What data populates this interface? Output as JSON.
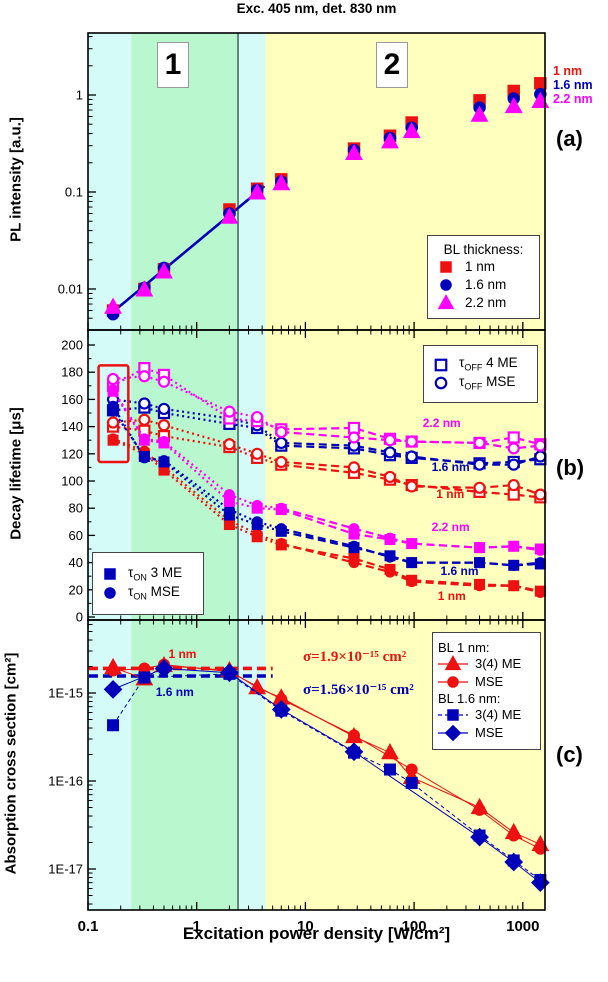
{
  "title": "Exc. 405 nm, det. 830 nm",
  "x_axis": {
    "label": "Excitation power density [W/cm²]",
    "scale": "log",
    "min": 0.1,
    "max": 1600,
    "tick_values": [
      0.1,
      1,
      10,
      100,
      1000
    ],
    "tick_labels": [
      "0.1",
      "1",
      "10",
      "100",
      "1000"
    ]
  },
  "bands": [
    {
      "from": 0.1,
      "to": 0.25,
      "color": "#d5fbf8"
    },
    {
      "from": 0.25,
      "to": 2.4,
      "color": "#b9f7ce"
    },
    {
      "from": 2.4,
      "to": 4.3,
      "color": "#d5fbf8"
    },
    {
      "from": 4.3,
      "to": 1600,
      "color": "#ffffbe"
    }
  ],
  "divider_x": 2.4,
  "region_labels": [
    "1",
    "2"
  ],
  "panel_letters": [
    "(a)",
    "(b)",
    "(c)"
  ],
  "colors": {
    "red": "#ee1111",
    "blue": "#0000bb",
    "magenta": "#ff00ff"
  },
  "chart_data": [
    {
      "panel": "a",
      "type": "scatter",
      "y_label": "PL intensity [a.u.]",
      "y_scale": "log",
      "y_range": [
        0.004,
        4.3
      ],
      "y_ticks": {
        "values": [
          1,
          0.1,
          0.01
        ],
        "labels": [
          "1",
          "0.1",
          "0.01"
        ]
      },
      "x": [
        0.17,
        0.33,
        0.5,
        2,
        3.6,
        6,
        28,
        60,
        95,
        400,
        825,
        1450
      ],
      "series": [
        {
          "name": "1 nm",
          "color": "red",
          "marker": "square",
          "filled": true,
          "values": [
            0.006,
            0.01,
            0.016,
            0.066,
            0.108,
            0.135,
            0.28,
            0.38,
            0.52,
            0.88,
            1.1,
            1.32
          ]
        },
        {
          "name": "1.6 nm",
          "color": "blue",
          "marker": "circle",
          "filled": true,
          "values": [
            0.0055,
            0.0103,
            0.0165,
            0.06,
            0.105,
            0.128,
            0.27,
            0.36,
            0.46,
            0.74,
            0.92,
            1.02
          ]
        },
        {
          "name": "2.2 nm",
          "color": "magenta",
          "marker": "triangle",
          "filled": true,
          "values": [
            0.0065,
            0.0098,
            0.015,
            0.055,
            0.098,
            0.122,
            0.25,
            0.33,
            0.42,
            0.62,
            0.76,
            0.86
          ]
        }
      ],
      "fit_line": {
        "color": "blue",
        "from": [
          0.16,
          0.0055
        ],
        "to": [
          4.2,
          0.115
        ]
      },
      "legend": {
        "title": "BL thickness:",
        "items": [
          {
            "marker": "square",
            "color": "red",
            "filled": true,
            "label": "1 nm"
          },
          {
            "marker": "circle",
            "color": "blue",
            "filled": true,
            "label": "1.6 nm"
          },
          {
            "marker": "triangle",
            "color": "magenta",
            "filled": true,
            "label": "2.2 nm"
          }
        ]
      },
      "side_labels": [
        {
          "text": "1 nm",
          "color": "red"
        },
        {
          "text": "1.6 nm",
          "color": "blue"
        },
        {
          "text": "2.2 nm",
          "color": "magenta"
        }
      ]
    },
    {
      "panel": "b",
      "type": "scatter",
      "y_label": "Decay lifetime [μs]",
      "y_scale": "linear",
      "y_range": [
        0,
        211
      ],
      "y_ticks": {
        "step": 20,
        "max": 200
      },
      "x": [
        0.17,
        0.33,
        0.5,
        2,
        3.6,
        6,
        28,
        60,
        95,
        400,
        825,
        1450
      ],
      "series": [
        {
          "name": "τOFF 4 ME 1 nm",
          "color": "red",
          "marker": "square",
          "filled": false,
          "values": [
            140,
            137,
            133,
            125,
            117,
            112,
            106,
            101,
            97,
            92,
            90,
            88
          ]
        },
        {
          "name": "τOFF MSE 1 nm",
          "color": "red",
          "marker": "circle",
          "filled": false,
          "values": [
            143,
            145,
            141,
            127,
            120,
            114,
            110,
            103,
            96,
            95,
            97,
            90
          ]
        },
        {
          "name": "τOFF 4 ME 1.6 nm",
          "color": "blue",
          "marker": "square",
          "filled": false,
          "values": [
            152,
            154,
            150,
            142,
            139,
            126,
            124,
            119,
            117,
            113,
            114,
            116
          ]
        },
        {
          "name": "τOFF MSE 1.6 nm",
          "color": "blue",
          "marker": "circle",
          "filled": false,
          "values": [
            160,
            157,
            153,
            146,
            141,
            128,
            126,
            121,
            118,
            112,
            112,
            118
          ]
        },
        {
          "name": "τOFF 4 ME 2.2 nm",
          "color": "magenta",
          "marker": "square",
          "filled": false,
          "values": [
            170,
            183,
            178,
            146,
            144,
            138,
            139,
            131,
            129,
            128,
            132,
            127
          ]
        },
        {
          "name": "τOFF MSE 2.2 nm",
          "color": "magenta",
          "marker": "circle",
          "filled": false,
          "values": [
            175,
            177,
            173,
            151,
            147,
            136,
            132,
            130,
            129,
            128,
            124,
            126
          ]
        },
        {
          "name": "τON 3 ME 1 nm",
          "color": "red",
          "marker": "square",
          "filled": true,
          "values": [
            130,
            120,
            108,
            68,
            59,
            53,
            43,
            35,
            27,
            24,
            23,
            19
          ]
        },
        {
          "name": "τON MSE 1 nm",
          "color": "red",
          "marker": "circle",
          "filled": true,
          "values": [
            131,
            122,
            110,
            71,
            61,
            54,
            40,
            33,
            26,
            23,
            23,
            18
          ]
        },
        {
          "name": "τON 3 ME 1.6 nm",
          "color": "blue",
          "marker": "square",
          "filled": true,
          "values": [
            152,
            118,
            114,
            75,
            68,
            63,
            51,
            45,
            40,
            40,
            38,
            39
          ]
        },
        {
          "name": "τON MSE 1.6 nm",
          "color": "blue",
          "marker": "circle",
          "filled": true,
          "values": [
            155,
            117,
            115,
            79,
            70,
            65,
            52,
            44,
            40,
            40,
            38,
            40
          ]
        },
        {
          "name": "τON 3 ME 2.2 nm",
          "color": "magenta",
          "marker": "square",
          "filled": true,
          "values": [
            166,
            130,
            128,
            85,
            80,
            79,
            61,
            57,
            54,
            51,
            52,
            50
          ]
        },
        {
          "name": "τON MSE 2.2 nm",
          "color": "magenta",
          "marker": "circle",
          "filled": true,
          "values": [
            167,
            131,
            129,
            90,
            82,
            80,
            65,
            58,
            54,
            51,
            52,
            49
          ]
        }
      ],
      "legend_off": {
        "items": [
          {
            "marker": "square",
            "color": "blue",
            "filled": false,
            "label": "τ|OFF| 4 ME"
          },
          {
            "marker": "circle",
            "color": "blue",
            "filled": false,
            "label": "τ|OFF| MSE"
          }
        ]
      },
      "legend_on": {
        "items": [
          {
            "marker": "square",
            "color": "blue",
            "filled": true,
            "label": "τ|ON| 3 ME"
          },
          {
            "marker": "circle",
            "color": "blue",
            "filled": true,
            "label": "τ|ON| MSE"
          }
        ]
      },
      "curve_labels": [
        {
          "text": "2.2 nm",
          "color": "magenta",
          "x": 120,
          "v": 141
        },
        {
          "text": "1.6 nm",
          "color": "blue",
          "x": 145,
          "v": 109
        },
        {
          "text": "1 nm",
          "color": "red",
          "x": 160,
          "v": 89
        },
        {
          "text": "2.2 nm",
          "color": "magenta",
          "x": 145,
          "v": 65
        },
        {
          "text": "1.6 nm",
          "color": "blue",
          "x": 175,
          "v": 32
        },
        {
          "text": "1 nm",
          "color": "red",
          "x": 165,
          "v": 14
        }
      ],
      "highlight_box": {
        "x": [
          0.125,
          0.235
        ],
        "v": [
          114,
          185
        ],
        "color": "red"
      }
    },
    {
      "panel": "c",
      "type": "scatter",
      "y_label": "Absorption cross section [cm²]",
      "y_scale": "log",
      "y_range": [
        3.5e-18,
        6.8e-15
      ],
      "y_ticks": {
        "values": [
          1e-15,
          1e-16,
          1e-17
        ],
        "labels": [
          "1E-15",
          "1E-16",
          "1E-17"
        ]
      },
      "series": [
        {
          "name": "BL 1 nm 3(4) ME",
          "color": "red",
          "marker": "triangle",
          "filled": true,
          "line": "solid",
          "points": [
            [
              0.17,
              1.95e-15
            ],
            [
              0.33,
              1.45e-15
            ],
            [
              0.5,
              2.05e-15
            ],
            [
              2,
              1.8e-15
            ],
            [
              3.6,
              1.15e-15
            ],
            [
              6,
              8.8e-16
            ],
            [
              28,
              3.2e-16
            ],
            [
              60,
              2.1e-16
            ],
            [
              95,
              1.1e-16
            ],
            [
              400,
              5e-17
            ],
            [
              825,
              2.6e-17
            ],
            [
              1450,
              1.9e-17
            ]
          ]
        },
        {
          "name": "BL 1 nm MSE",
          "color": "red",
          "marker": "circle",
          "filled": true,
          "line": "solid",
          "points": [
            [
              0.17,
              1.8e-15
            ],
            [
              0.33,
              1.9e-15
            ],
            [
              0.5,
              2.1e-15
            ],
            [
              2,
              1.75e-15
            ],
            [
              6,
              8.5e-16
            ],
            [
              28,
              3.3e-16
            ],
            [
              95,
              1.35e-16
            ],
            [
              400,
              4.7e-17
            ],
            [
              825,
              2.4e-17
            ],
            [
              1450,
              1.7e-17
            ]
          ]
        },
        {
          "name": "BL 1.6 nm 3(4) ME",
          "color": "blue",
          "marker": "square",
          "filled": true,
          "line": "dashed",
          "points": [
            [
              0.17,
              4.3e-16
            ],
            [
              0.33,
              1.5e-15
            ],
            [
              2,
              1.65e-15
            ],
            [
              6,
              6.3e-16
            ],
            [
              28,
              2.1e-16
            ],
            [
              60,
              1.35e-16
            ],
            [
              95,
              9.5e-17
            ],
            [
              400,
              2.4e-17
            ],
            [
              825,
              1.25e-17
            ],
            [
              1450,
              7.5e-18
            ]
          ]
        },
        {
          "name": "BL 1.6 nm MSE",
          "color": "blue",
          "marker": "diamond",
          "filled": true,
          "line": "solid",
          "points": [
            [
              0.17,
              1.1e-15
            ],
            [
              0.5,
              1.9e-15
            ],
            [
              2,
              1.7e-15
            ],
            [
              6,
              6.5e-16
            ],
            [
              28,
              2.15e-16
            ],
            [
              400,
              2.3e-17
            ],
            [
              825,
              1.2e-17
            ],
            [
              1450,
              7e-18
            ]
          ]
        }
      ],
      "sigma_lines": [
        {
          "value": 1.9e-15,
          "color": "red",
          "x_from": 0.102,
          "x_to": 5,
          "label": "1 nm",
          "label_x": 0.55,
          "label_v": 2.7e-15
        },
        {
          "value": 1.56e-15,
          "color": "blue",
          "x_from": 0.102,
          "x_to": 5,
          "label": "1.6 nm",
          "label_x": 0.42,
          "label_v": 1e-15
        }
      ],
      "annotations": [
        {
          "text": "σ=1.9×10⁻¹⁵ cm²",
          "color": "red",
          "x": 9.5,
          "v": 2.6e-15
        },
        {
          "text": "σ=1.56×10⁻¹⁵ cm²",
          "color": "blue",
          "x": 9.5,
          "v": 1.12e-15
        }
      ],
      "legend": {
        "groups": [
          {
            "header": "BL 1 nm:",
            "items": [
              {
                "marker": "triangle",
                "color": "red",
                "filled": true,
                "line": "solid",
                "label": "3(4) ME"
              },
              {
                "marker": "circle",
                "color": "red",
                "filled": true,
                "line": "solid",
                "label": "MSE"
              }
            ]
          },
          {
            "header": "BL 1.6 nm:",
            "items": [
              {
                "marker": "square",
                "color": "blue",
                "filled": true,
                "line": "dashed",
                "label": "3(4) ME"
              },
              {
                "marker": "diamond",
                "color": "blue",
                "filled": true,
                "line": "solid",
                "label": "MSE"
              }
            ]
          }
        ]
      }
    }
  ]
}
